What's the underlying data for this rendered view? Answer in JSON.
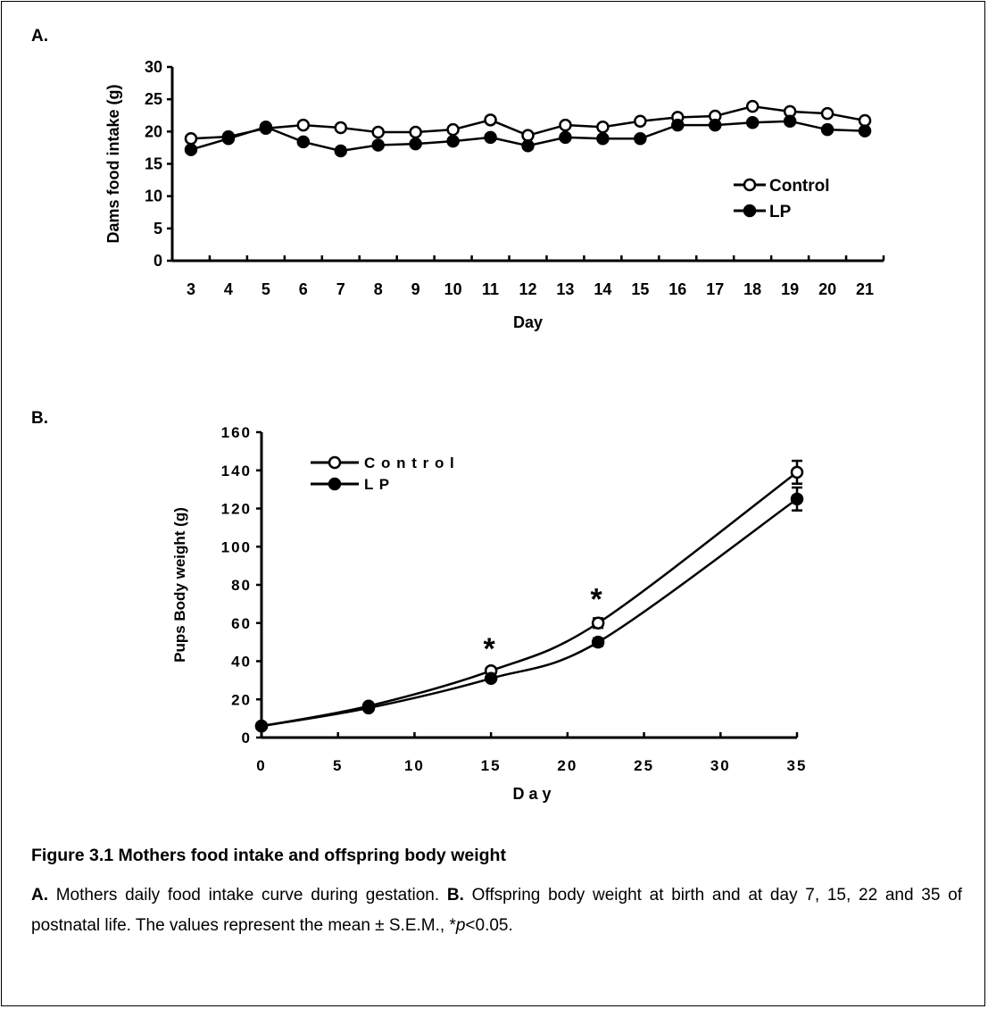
{
  "panels": {
    "a_label": "A.",
    "b_label": "B."
  },
  "chart_data": [
    {
      "type": "line",
      "xlabel": "Day",
      "ylabel": "Dams food intake (g)",
      "categories": [
        "3",
        "4",
        "5",
        "6",
        "7",
        "8",
        "9",
        "10",
        "11",
        "12",
        "13",
        "14",
        "15",
        "16",
        "17",
        "18",
        "19",
        "20",
        "21"
      ],
      "yticks": [
        "0",
        "5",
        "10",
        "15",
        "20",
        "25",
        "30"
      ],
      "ylim": [
        0,
        30
      ],
      "legend_position": "right",
      "series": [
        {
          "name": "Control",
          "marker": "open-circle",
          "values": [
            18.9,
            19.2,
            20.5,
            21.0,
            20.6,
            19.9,
            19.9,
            20.3,
            21.8,
            19.4,
            21.0,
            20.7,
            21.6,
            22.2,
            22.4,
            23.9,
            23.1,
            22.8,
            21.7
          ]
        },
        {
          "name": "LP",
          "marker": "filled-circle",
          "values": [
            17.2,
            18.9,
            20.7,
            18.4,
            17.0,
            17.9,
            18.1,
            18.5,
            19.1,
            17.8,
            19.1,
            18.9,
            18.9,
            21.0,
            21.0,
            21.4,
            21.6,
            20.3,
            20.1
          ]
        }
      ]
    },
    {
      "type": "line",
      "xlabel": "D a y",
      "ylabel": "Pups Body weight (g)",
      "x": [
        0,
        7,
        15,
        22,
        35
      ],
      "xticks": [
        "0",
        "5",
        "10",
        "15",
        "20",
        "25",
        "30",
        "35"
      ],
      "xtick_values": [
        0,
        5,
        10,
        15,
        20,
        25,
        30,
        35
      ],
      "yticks": [
        "0",
        "20",
        "40",
        "60",
        "80",
        "100",
        "120",
        "140",
        "160"
      ],
      "ylim": [
        0,
        160
      ],
      "xlim": [
        0,
        35
      ],
      "legend_position": "top-left",
      "significance": [
        {
          "x": 15,
          "label": "*"
        },
        {
          "x": 22,
          "label": "*"
        }
      ],
      "series": [
        {
          "name": "C o n t r o l",
          "marker": "open-circle",
          "values": [
            6,
            16.5,
            35,
            60,
            139
          ],
          "errors": [
            0,
            1,
            1.5,
            2.5,
            6
          ]
        },
        {
          "name": "L P",
          "marker": "filled-circle",
          "values": [
            6,
            15.5,
            31,
            50,
            125
          ],
          "errors": [
            0,
            1,
            1.5,
            2,
            6
          ]
        }
      ]
    }
  ],
  "caption": {
    "title": "Figure 3.1 Mothers food intake and offspring body weight",
    "a_lead": "A.",
    "a_text": " Mothers daily food intake curve during gestation. ",
    "b_lead": "B.",
    "b_text": " Offspring body weight at birth and at day 7, 15, 22 and 35 of postnatal life. The values represent the mean ± S.E.M., ",
    "star": "*",
    "p": "p",
    "p_rest": "<0.05."
  }
}
